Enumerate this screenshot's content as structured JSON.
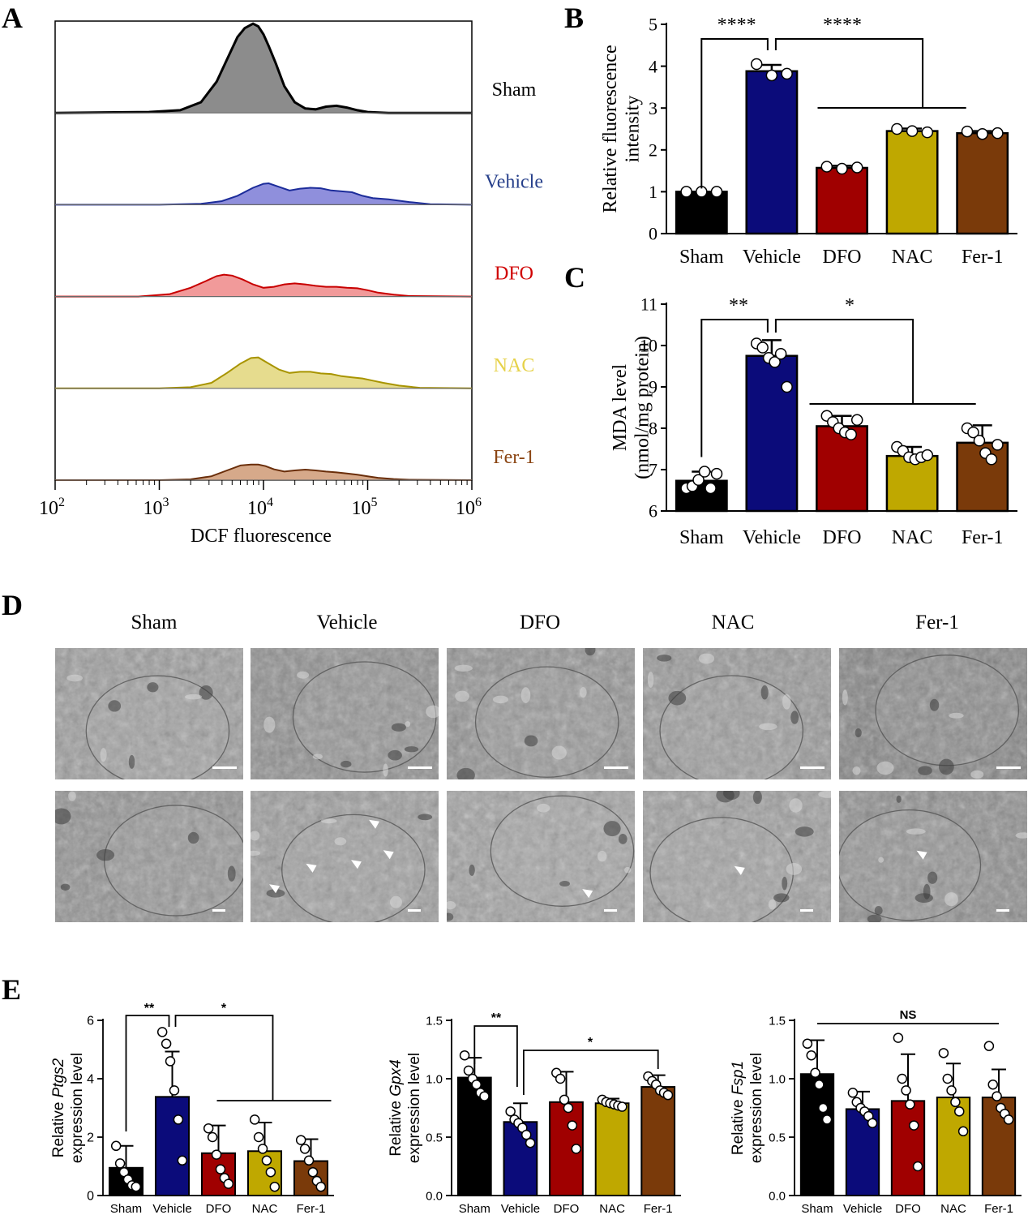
{
  "panel_labels": {
    "A": "A",
    "B": "B",
    "C": "C",
    "D": "D",
    "E": "E"
  },
  "colors": {
    "sham": "#000000",
    "vehicle": "#0b0b7a",
    "dfo": "#a00000",
    "nac": "#bfa800",
    "fer1": "#7a3a0a",
    "hist_sham_fill": "#8c8c8c",
    "hist_vehicle_fill": "#8f8fdc",
    "hist_dfo_fill": "#f19a9a",
    "hist_nac_fill": "#e6dc8e",
    "hist_fer1_fill": "#d6a98a"
  },
  "em": {
    "labels": [
      "Sham",
      "Vehicle",
      "DFO",
      "NAC",
      "Fer-1"
    ]
  },
  "chart_data": [
    {
      "id": "A",
      "type": "area",
      "xlabel": "DCF fluorescence",
      "xscale": "log",
      "xlim": [
        100,
        1000000
      ],
      "x_tick_labels": [
        "10^2",
        "10^3",
        "10^4",
        "10^5",
        "10^6"
      ],
      "series": [
        {
          "name": "Sham",
          "label_color": "#000000",
          "line": "#000000",
          "fill": "#8c8c8c",
          "logx": [
            2.0,
            2.9,
            3.2,
            3.4,
            3.55,
            3.65,
            3.75,
            3.82,
            3.9,
            3.95,
            4.0,
            4.05,
            4.12,
            4.2,
            4.3,
            4.4,
            4.5,
            4.6,
            4.7,
            4.8,
            4.9,
            5.0,
            5.2,
            6.0
          ],
          "y": [
            0,
            0.01,
            0.03,
            0.12,
            0.35,
            0.6,
            0.85,
            0.95,
            1.0,
            0.97,
            0.88,
            0.75,
            0.55,
            0.3,
            0.12,
            0.05,
            0.04,
            0.07,
            0.08,
            0.06,
            0.03,
            0.01,
            0,
            0
          ]
        },
        {
          "name": "Vehicle",
          "label_color": "#27408b",
          "line": "#1c2c9a",
          "fill": "#8f8fdc",
          "logx": [
            2.0,
            3.0,
            3.4,
            3.6,
            3.75,
            3.9,
            4.0,
            4.05,
            4.15,
            4.25,
            4.35,
            4.45,
            4.55,
            4.65,
            4.75,
            4.85,
            4.95,
            5.05,
            5.2,
            5.4,
            5.6,
            6.0
          ],
          "y": [
            0,
            0.0,
            0.02,
            0.08,
            0.2,
            0.38,
            0.47,
            0.48,
            0.4,
            0.32,
            0.36,
            0.38,
            0.37,
            0.32,
            0.3,
            0.28,
            0.2,
            0.15,
            0.12,
            0.06,
            0.01,
            0
          ]
        },
        {
          "name": "DFO",
          "label_color": "#d00000",
          "line": "#c80000",
          "fill": "#f19a9a",
          "logx": [
            2.0,
            2.8,
            3.1,
            3.3,
            3.45,
            3.55,
            3.62,
            3.7,
            3.8,
            3.9,
            4.0,
            4.1,
            4.2,
            4.3,
            4.4,
            4.5,
            4.6,
            4.7,
            4.8,
            4.9,
            5.0,
            5.1,
            5.25,
            5.4,
            6.0
          ],
          "y": [
            0,
            0.0,
            0.05,
            0.18,
            0.32,
            0.42,
            0.45,
            0.43,
            0.35,
            0.25,
            0.18,
            0.2,
            0.25,
            0.27,
            0.25,
            0.22,
            0.2,
            0.2,
            0.18,
            0.17,
            0.13,
            0.08,
            0.04,
            0.01,
            0
          ]
        },
        {
          "name": "NAC",
          "label_color": "#e6d24a",
          "line": "#a89400",
          "fill": "#e6dc8e",
          "logx": [
            2.0,
            3.0,
            3.3,
            3.5,
            3.65,
            3.78,
            3.88,
            3.95,
            4.05,
            4.15,
            4.25,
            4.35,
            4.45,
            4.55,
            4.65,
            4.75,
            4.85,
            4.95,
            5.05,
            5.15,
            5.3,
            5.5,
            6.0
          ],
          "y": [
            0,
            0.0,
            0.02,
            0.1,
            0.28,
            0.45,
            0.55,
            0.56,
            0.45,
            0.34,
            0.28,
            0.3,
            0.3,
            0.27,
            0.26,
            0.22,
            0.2,
            0.18,
            0.14,
            0.1,
            0.05,
            0.01,
            0
          ]
        },
        {
          "name": "Fer-1",
          "label_color": "#8b4513",
          "line": "#6a2e0a",
          "fill": "#d6a98a",
          "logx": [
            2.0,
            3.0,
            3.3,
            3.5,
            3.65,
            3.78,
            3.88,
            3.95,
            4.02,
            4.1,
            4.2,
            4.3,
            4.4,
            4.5,
            4.6,
            4.7,
            4.8,
            4.9,
            5.0,
            5.1,
            5.25,
            5.4,
            6.0
          ],
          "y": [
            0,
            0.0,
            0.02,
            0.1,
            0.25,
            0.38,
            0.4,
            0.4,
            0.36,
            0.28,
            0.22,
            0.25,
            0.27,
            0.25,
            0.22,
            0.2,
            0.17,
            0.14,
            0.1,
            0.06,
            0.03,
            0.01,
            0
          ]
        }
      ]
    },
    {
      "id": "B",
      "type": "bar",
      "categories": [
        "Sham",
        "Vehicle",
        "DFO",
        "NAC",
        "Fer-1"
      ],
      "values": [
        1.0,
        3.88,
        1.57,
        2.45,
        2.4
      ],
      "errors": [
        0.0,
        0.15,
        0.05,
        0.06,
        0.05
      ],
      "points": [
        [
          1.0,
          1.0,
          1.0
        ],
        [
          4.05,
          3.78,
          3.82
        ],
        [
          1.6,
          1.55,
          1.58
        ],
        [
          2.5,
          2.45,
          2.42
        ],
        [
          2.44,
          2.38,
          2.4
        ]
      ],
      "ylabel": "Relative fluorescence intensity",
      "ylabel_lines": [
        "Relative fluorescence",
        "intensity"
      ],
      "ylim": [
        0,
        5
      ],
      "yticks": [
        0,
        1,
        2,
        3,
        4,
        5
      ],
      "annotations": [
        "****",
        "****"
      ]
    },
    {
      "id": "C",
      "type": "bar",
      "categories": [
        "Sham",
        "Vehicle",
        "DFO",
        "NAC",
        "Fer-1"
      ],
      "values": [
        6.73,
        9.75,
        8.05,
        7.33,
        7.65
      ],
      "errors": [
        0.22,
        0.38,
        0.25,
        0.22,
        0.42
      ],
      "points": [
        [
          6.55,
          6.6,
          6.75,
          6.95,
          6.55,
          6.9
        ],
        [
          10.05,
          9.95,
          9.7,
          9.6,
          9.8,
          9.0
        ],
        [
          8.3,
          8.15,
          8.0,
          7.9,
          7.85,
          8.2
        ],
        [
          7.55,
          7.45,
          7.3,
          7.25,
          7.3,
          7.35
        ],
        [
          8.0,
          7.9,
          7.7,
          7.4,
          7.25,
          7.6
        ]
      ],
      "ylabel": "MDA level (nmol/mg protein)",
      "ylabel_lines": [
        "MDA level",
        "(nmol/mg protein)"
      ],
      "ylim": [
        6,
        11
      ],
      "yticks": [
        6,
        7,
        8,
        9,
        10,
        11
      ],
      "annotations": [
        "**",
        "*"
      ]
    },
    {
      "id": "E1",
      "type": "bar",
      "categories": [
        "Sham",
        "Vehicle",
        "DFO",
        "NAC",
        "Fer-1"
      ],
      "values": [
        0.95,
        3.38,
        1.45,
        1.52,
        1.18
      ],
      "errors": [
        0.75,
        1.55,
        0.95,
        0.98,
        0.75
      ],
      "points": [
        [
          1.7,
          1.1,
          0.8,
          0.55,
          0.35,
          0.3
        ],
        [
          5.6,
          5.2,
          4.6,
          3.6,
          2.6,
          1.2
        ],
        [
          2.3,
          2.0,
          1.4,
          0.9,
          0.6,
          0.4
        ],
        [
          2.6,
          2.0,
          1.6,
          1.2,
          0.8,
          0.3
        ],
        [
          1.9,
          1.6,
          1.2,
          0.8,
          0.5,
          0.3
        ]
      ],
      "ylabel_prefix": "Relative ",
      "gene": "Ptgs2",
      "ylabel_line2": "expression level",
      "ylim": [
        0,
        6
      ],
      "yticks": [
        0,
        2,
        4,
        6
      ],
      "annotations": [
        "**",
        "*"
      ]
    },
    {
      "id": "E2",
      "type": "bar",
      "categories": [
        "Sham",
        "Vehicle",
        "DFO",
        "NAC",
        "Fer-1"
      ],
      "values": [
        1.01,
        0.63,
        0.8,
        0.79,
        0.93
      ],
      "errors": [
        0.17,
        0.16,
        0.26,
        0.04,
        0.1
      ],
      "points": [
        [
          1.2,
          1.07,
          1.0,
          0.95,
          0.88,
          0.85
        ],
        [
          0.72,
          0.65,
          0.62,
          0.58,
          0.52,
          0.45
        ],
        [
          1.05,
          1.0,
          0.82,
          0.75,
          0.6,
          0.4
        ],
        [
          0.82,
          0.8,
          0.79,
          0.78,
          0.77,
          0.76
        ],
        [
          1.02,
          0.98,
          0.95,
          0.9,
          0.88,
          0.86
        ]
      ],
      "ylabel_prefix": "Relative ",
      "gene": "Gpx4",
      "ylabel_line2": "expression level",
      "ylim": [
        0,
        1.5
      ],
      "yticks": [
        0.0,
        0.5,
        1.0,
        1.5
      ],
      "annotations": [
        "**",
        "*"
      ]
    },
    {
      "id": "E3",
      "type": "bar",
      "categories": [
        "Sham",
        "Vehicle",
        "DFO",
        "NAC",
        "Fer-1"
      ],
      "values": [
        1.04,
        0.74,
        0.81,
        0.84,
        0.84
      ],
      "errors": [
        0.29,
        0.15,
        0.4,
        0.29,
        0.24
      ],
      "points": [
        [
          1.3,
          1.2,
          1.05,
          0.95,
          0.75,
          0.65
        ],
        [
          0.88,
          0.8,
          0.75,
          0.72,
          0.68,
          0.62
        ],
        [
          1.35,
          1.0,
          0.9,
          0.78,
          0.6,
          0.25
        ],
        [
          1.22,
          1.0,
          0.9,
          0.8,
          0.72,
          0.55
        ],
        [
          1.28,
          0.95,
          0.85,
          0.75,
          0.7,
          0.65
        ]
      ],
      "ylabel_prefix": "Relative ",
      "gene": "Fsp1",
      "ylabel_line2": "expression level",
      "ylim": [
        0,
        1.5
      ],
      "yticks": [
        0.0,
        0.5,
        1.0,
        1.5
      ],
      "annotations": [
        "NS"
      ]
    }
  ]
}
